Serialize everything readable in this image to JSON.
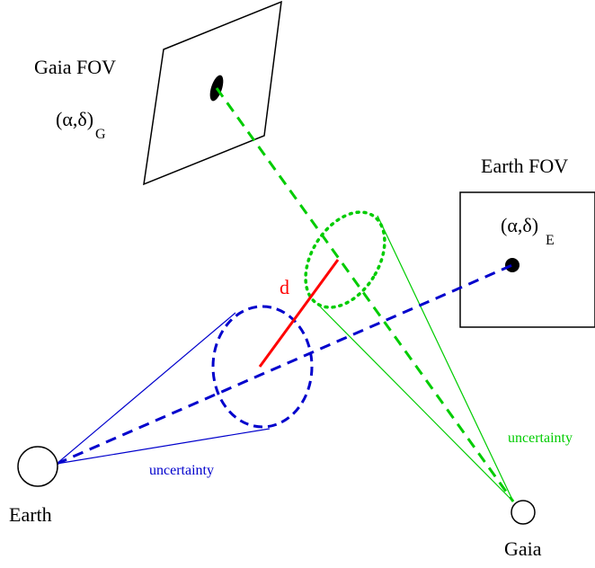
{
  "labels": {
    "gaia_fov": "Gaia FOV",
    "earth_fov": "Earth FOV",
    "coord_gaia": "(α,δ)",
    "coord_gaia_sub": "G",
    "coord_earth": "(α,δ)",
    "coord_earth_sub": "E",
    "distance": "d",
    "uncertainty_earth": "uncertainty",
    "uncertainty_gaia": "uncertainty",
    "earth": "Earth",
    "gaia": "Gaia"
  },
  "colors": {
    "gaia": "#00cc00",
    "earth": "#0000cc",
    "distance": "#ff0000",
    "ink": "#000000"
  }
}
